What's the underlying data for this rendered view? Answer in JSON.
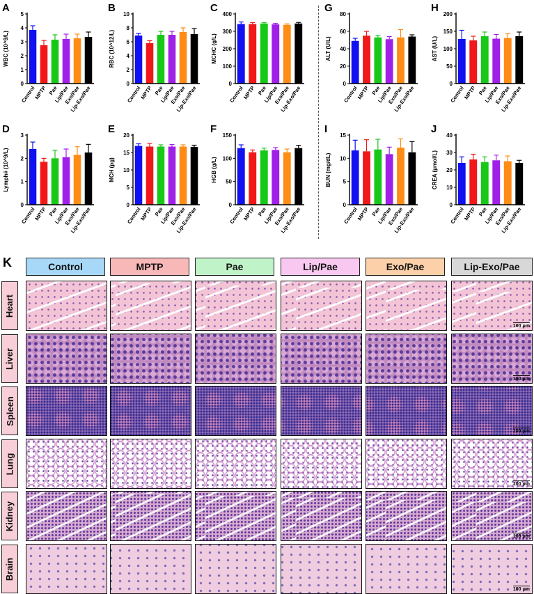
{
  "chart_data": [
    {
      "panel": "A",
      "type": "bar",
      "title": "",
      "ylabel": "WBC (10^9/L)",
      "categories": [
        "Control",
        "MPTP",
        "Pae",
        "Lip/Pae",
        "Exo/Pae",
        "Lip-Exo/Pae"
      ],
      "values": [
        3.85,
        2.75,
        3.15,
        3.2,
        3.25,
        3.35
      ],
      "errors": [
        0.3,
        0.35,
        0.35,
        0.35,
        0.3,
        0.35
      ],
      "ylim": [
        0,
        5
      ],
      "yticks": [
        0,
        1,
        2,
        3,
        4,
        5
      ]
    },
    {
      "panel": "B",
      "type": "bar",
      "title": "",
      "ylabel": "RBC (10^12/L)",
      "categories": [
        "Control",
        "MPTP",
        "Pae",
        "Lip/Pae",
        "Exo/Pae",
        "Lip-Exo/Pae"
      ],
      "values": [
        6.9,
        5.8,
        7.0,
        7.0,
        7.4,
        7.1
      ],
      "errors": [
        0.3,
        0.35,
        0.5,
        0.5,
        0.6,
        0.8
      ],
      "ylim": [
        0,
        10
      ],
      "yticks": [
        0,
        2,
        4,
        6,
        8,
        10
      ]
    },
    {
      "panel": "C",
      "type": "bar",
      "title": "",
      "ylabel": "MCHC (g/L)",
      "categories": [
        "Control",
        "MPTP",
        "Pae",
        "Lip/Pae",
        "Exo/Pae",
        "Lip-Exo/Pae"
      ],
      "values": [
        342,
        342,
        345,
        340,
        337,
        345
      ],
      "errors": [
        12,
        8,
        5,
        6,
        6,
        6
      ],
      "ylim": [
        0,
        400
      ],
      "yticks": [
        0,
        100,
        200,
        300,
        400
      ]
    },
    {
      "panel": "G",
      "type": "bar",
      "title": "",
      "ylabel": "ALT (U/L)",
      "categories": [
        "Control",
        "MPTP",
        "Pae",
        "Lip/Pae",
        "Exo/Pae",
        "Lip-Exo/Pae"
      ],
      "values": [
        49,
        55,
        53,
        51,
        53,
        54
      ],
      "errors": [
        3,
        5,
        2,
        3,
        9,
        2
      ],
      "ylim": [
        0,
        80
      ],
      "yticks": [
        0,
        20,
        40,
        60,
        80
      ]
    },
    {
      "panel": "H",
      "type": "bar",
      "title": "",
      "ylabel": "AST (U/L)",
      "categories": [
        "Control",
        "MPTP",
        "Pae",
        "Lip/Pae",
        "Exo/Pae",
        "Lip-Exo/Pae"
      ],
      "values": [
        128,
        124,
        136,
        129,
        131,
        136
      ],
      "errors": [
        25,
        12,
        12,
        12,
        12,
        12
      ],
      "ylim": [
        0,
        200
      ],
      "yticks": [
        0,
        50,
        100,
        150,
        200
      ]
    },
    {
      "panel": "D",
      "type": "bar",
      "title": "",
      "ylabel": "Lymph# (10^9/L)",
      "categories": [
        "Control",
        "MPTP",
        "Pae",
        "Lip/Pae",
        "Exo/Pae",
        "Lip-Exo/Pae"
      ],
      "values": [
        2.4,
        1.85,
        2.0,
        2.05,
        2.15,
        2.25
      ],
      "errors": [
        0.3,
        0.15,
        0.35,
        0.35,
        0.35,
        0.35
      ],
      "ylim": [
        0,
        3
      ],
      "yticks": [
        0,
        1,
        2,
        3
      ]
    },
    {
      "panel": "E",
      "type": "bar",
      "title": "",
      "ylabel": "MCH (pg)",
      "categories": [
        "Control",
        "MPTP",
        "Pae",
        "Lip/Pae",
        "Exo/Pae",
        "Lip-Exo/Pae"
      ],
      "values": [
        16.9,
        16.7,
        16.7,
        16.7,
        16.7,
        16.6
      ],
      "errors": [
        0.6,
        0.9,
        0.5,
        0.6,
        0.5,
        0.5
      ],
      "ylim": [
        0,
        20
      ],
      "yticks": [
        0,
        5,
        10,
        15,
        20
      ]
    },
    {
      "panel": "F",
      "type": "bar",
      "title": "",
      "ylabel": "HGB (g/L)",
      "categories": [
        "Control",
        "MPTP",
        "Pae",
        "Lip/Pae",
        "Exo/Pae",
        "Lip-Exo/Pae"
      ],
      "values": [
        122,
        113,
        117,
        118,
        113,
        122
      ],
      "errors": [
        7,
        5,
        5,
        5,
        7,
        6
      ],
      "ylim": [
        0,
        150
      ],
      "yticks": [
        0,
        50,
        100,
        150
      ]
    },
    {
      "panel": "I",
      "type": "bar",
      "title": "",
      "ylabel": "BUN (mg/dL)",
      "categories": [
        "Control",
        "MPTP",
        "Pae",
        "Lip/Pae",
        "Exo/Pae",
        "Lip-Exo/Pae"
      ],
      "values": [
        11.7,
        11.5,
        11.9,
        10.9,
        12.3,
        11.3
      ],
      "errors": [
        2.2,
        2.5,
        2.2,
        1.5,
        1.9,
        2.3
      ],
      "ylim": [
        0,
        15
      ],
      "yticks": [
        0,
        5,
        10,
        15
      ]
    },
    {
      "panel": "J",
      "type": "bar",
      "title": "",
      "ylabel": "CREA (μmol/L)",
      "categories": [
        "Control",
        "MPTP",
        "Pae",
        "Lip/Pae",
        "Exo/Pae",
        "Lip-Exo/Pae"
      ],
      "values": [
        24,
        26,
        24.5,
        25.5,
        25,
        24
      ],
      "errors": [
        3.5,
        3,
        3,
        3,
        3,
        1.5
      ],
      "ylim": [
        0,
        40
      ],
      "yticks": [
        0,
        10,
        20,
        30,
        40
      ]
    }
  ],
  "bar_colors": [
    "#1010f0",
    "#f01818",
    "#18c818",
    "#a020e8",
    "#ff8c14",
    "#000000"
  ],
  "histology": {
    "letter": "K",
    "groups": [
      {
        "label": "Control",
        "color": "#a8d8f8"
      },
      {
        "label": "MPTP",
        "color": "#f8b8b8"
      },
      {
        "label": "Pae",
        "color": "#c0f4c8"
      },
      {
        "label": "Lip/Pae",
        "color": "#f8c8f0"
      },
      {
        "label": "Exo/Pae",
        "color": "#fcd0a8"
      },
      {
        "label": "Lip-Exo/Pae",
        "color": "#d8d8d8"
      }
    ],
    "organs": [
      "Heart",
      "Liver",
      "Spleen",
      "Lung",
      "Kidney",
      "Brain"
    ],
    "scale_bar": "100 μm"
  }
}
